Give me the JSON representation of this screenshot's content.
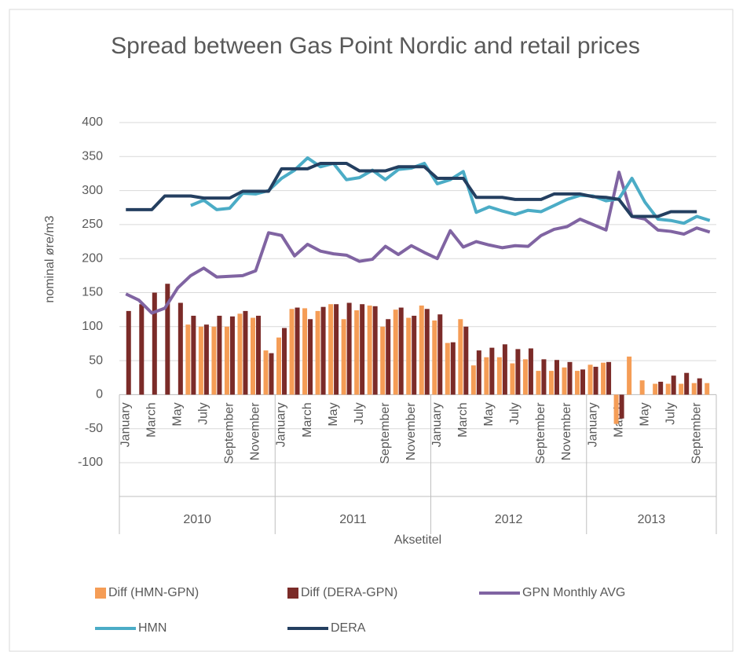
{
  "chart_data": {
    "type": "combo",
    "title": "Spread between Gas Point Nordic and retail prices",
    "y_label": "nominal øre/m3",
    "x_label": "Aksetitel",
    "categories": [
      "January",
      null,
      "March",
      null,
      "May",
      null,
      "July",
      null,
      "September",
      null,
      "November",
      null,
      "January",
      null,
      "March",
      null,
      "May",
      null,
      "July",
      null,
      "September",
      null,
      "November",
      null,
      "January",
      null,
      "March",
      null,
      "May",
      null,
      "July",
      null,
      "September",
      null,
      "November",
      null,
      "January",
      null,
      "March",
      null,
      "May",
      null,
      "July",
      null,
      "September",
      null
    ],
    "groups": [
      {
        "label": "2010",
        "count": 12
      },
      {
        "label": "2011",
        "count": 12
      },
      {
        "label": "2012",
        "count": 12
      },
      {
        "label": "2013",
        "count": 10
      }
    ],
    "ylim": [
      -100,
      400
    ],
    "yticks": [
      -100,
      -50,
      0,
      50,
      100,
      150,
      200,
      250,
      300,
      350,
      400
    ],
    "grid": true,
    "series": [
      {
        "name": "Diff (HMN-GPN)",
        "type": "bar",
        "color": "#f59d56",
        "values": [
          null,
          null,
          null,
          null,
          null,
          103,
          100,
          100,
          100,
          119,
          113,
          65,
          84,
          126,
          127,
          123,
          133,
          111,
          124,
          131,
          100,
          125,
          113,
          131,
          109,
          76,
          111,
          43,
          55,
          55,
          46,
          52,
          35,
          35,
          40,
          35,
          44,
          47,
          -43,
          56,
          21,
          16,
          16,
          16,
          17,
          17
        ]
      },
      {
        "name": "Diff (DERA-GPN)",
        "type": "bar",
        "color": "#7b2b28",
        "values": [
          123,
          133,
          150,
          163,
          135,
          116,
          103,
          116,
          115,
          123,
          116,
          61,
          98,
          128,
          111,
          129,
          133,
          135,
          133,
          130,
          111,
          128,
          116,
          126,
          118,
          77,
          100,
          65,
          69,
          74,
          67,
          68,
          52,
          51,
          48,
          37,
          41,
          48,
          -35,
          null,
          null,
          19,
          28,
          32,
          24,
          null
        ]
      },
      {
        "name": "GPN Monthly AVG",
        "type": "line",
        "color": "#8064a2",
        "values": [
          148,
          139,
          120,
          127,
          157,
          175,
          186,
          173,
          174,
          175,
          182,
          238,
          234,
          204,
          221,
          211,
          207,
          205,
          196,
          199,
          218,
          206,
          219,
          209,
          200,
          241,
          217,
          225,
          220,
          216,
          219,
          218,
          234,
          243,
          247,
          258,
          250,
          242,
          327,
          262,
          258,
          242,
          240,
          236,
          245,
          239
        ]
      },
      {
        "name": "HMN",
        "type": "line",
        "color": "#4bacc6",
        "values": [
          null,
          null,
          null,
          null,
          null,
          278,
          286,
          272,
          274,
          296,
          295,
          300,
          318,
          330,
          348,
          335,
          340,
          316,
          319,
          330,
          316,
          331,
          333,
          340,
          310,
          316,
          328,
          268,
          276,
          270,
          265,
          271,
          269,
          278,
          287,
          293,
          292,
          285,
          288,
          318,
          283,
          258,
          256,
          252,
          262,
          256
        ]
      },
      {
        "name": "DERA",
        "type": "line",
        "color": "#243f60",
        "values": [
          272,
          272,
          272,
          292,
          292,
          292,
          289,
          289,
          289,
          299,
          299,
          299,
          332,
          332,
          332,
          340,
          340,
          340,
          329,
          329,
          329,
          335,
          335,
          335,
          318,
          318,
          318,
          290,
          290,
          290,
          287,
          287,
          287,
          295,
          295,
          295,
          291,
          290,
          287,
          262,
          262,
          262,
          269,
          269,
          269,
          null
        ]
      }
    ]
  }
}
